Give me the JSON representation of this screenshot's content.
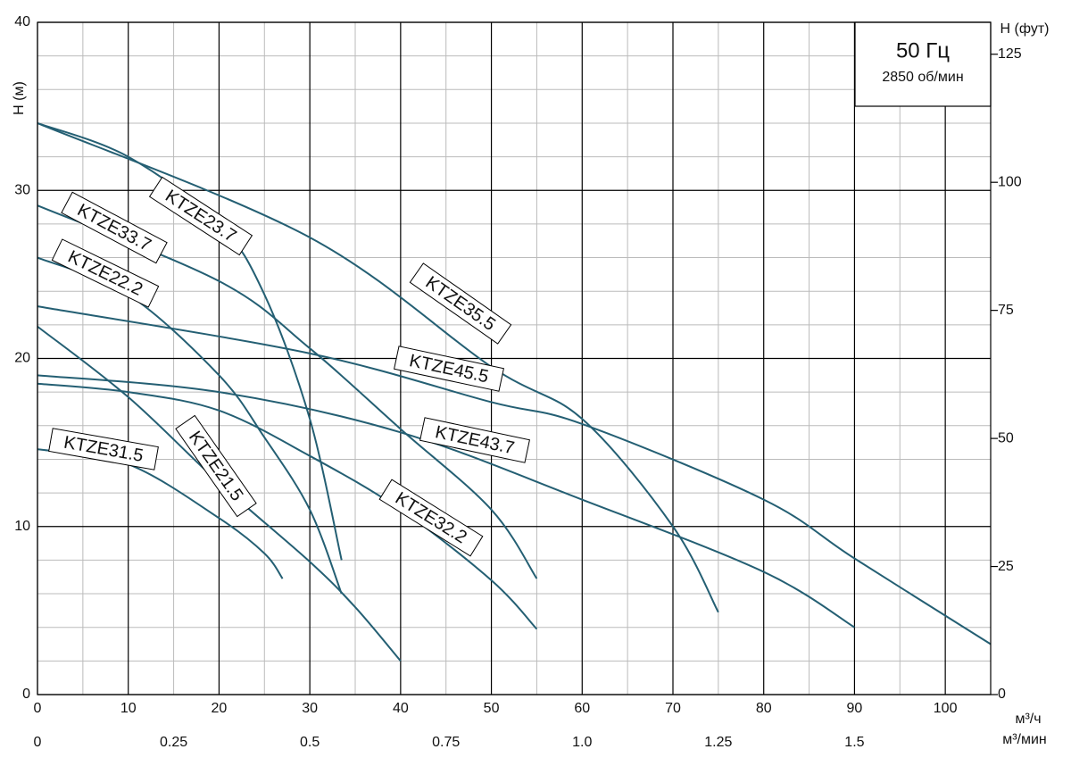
{
  "chart_data": {
    "type": "line",
    "legend_title": "50 Гц",
    "legend_subtitle": "2850 об/мин",
    "ylabel": "H (м)",
    "y2label": "H (фут)",
    "xlabel": "м³/ч",
    "x2label": "м³/мин",
    "xlim": [
      0,
      105
    ],
    "xticks": [
      0,
      10,
      20,
      30,
      40,
      50,
      60,
      70,
      80,
      90,
      100
    ],
    "x2lim": [
      0,
      1.75
    ],
    "x2ticks": [
      0,
      0.25,
      0.5,
      0.75,
      {
        "value": 1,
        "label": "1.0"
      },
      1.25,
      1.5
    ],
    "ylim": [
      0,
      40
    ],
    "yticks": [
      0,
      10,
      20,
      30,
      40
    ],
    "y2lim": [
      0,
      131.23
    ],
    "y2ticks": [
      0,
      25,
      50,
      75,
      100,
      125
    ],
    "grid": true,
    "minor_divisions": {
      "x": 2,
      "y": 5
    },
    "series": [
      {
        "name": "KTZE23.7",
        "color": "#245f73",
        "x": [
          0,
          10,
          20,
          25,
          30,
          33.5
        ],
        "values": [
          34,
          32,
          28,
          23.8,
          16.4,
          8
        ]
      },
      {
        "name": "KTZE33.7",
        "color": "#245f73",
        "x": [
          0,
          20,
          30,
          40,
          50,
          55
        ],
        "values": [
          29.1,
          24.6,
          20.6,
          15.8,
          11,
          6.9
        ]
      },
      {
        "name": "KTZE22.2",
        "color": "#245f73",
        "x": [
          0,
          10,
          20,
          25,
          30,
          33.5
        ],
        "values": [
          26,
          23.8,
          19,
          15.3,
          11,
          6
        ]
      },
      {
        "name": "KTZE35.5",
        "color": "#245f73",
        "x": [
          0,
          30,
          50,
          60,
          70,
          75
        ],
        "values": [
          34,
          27.2,
          19.5,
          16.4,
          10,
          4.9
        ]
      },
      {
        "name": "KTZE45.5",
        "color": "#245f73",
        "x": [
          0,
          30,
          50,
          60,
          80,
          90,
          105
        ],
        "values": [
          23.1,
          20.3,
          17.4,
          16.1,
          11.6,
          8.1,
          3
        ]
      },
      {
        "name": "KTZE43.7",
        "color": "#245f73",
        "x": [
          0,
          20,
          40,
          60,
          80,
          90
        ],
        "values": [
          19,
          18,
          15.6,
          11.6,
          7.3,
          4
        ]
      },
      {
        "name": "KTZE31.5",
        "color": "#245f73",
        "x": [
          0,
          10,
          20,
          25,
          27
        ],
        "values": [
          14.6,
          13.7,
          10.5,
          8.4,
          6.9
        ]
      },
      {
        "name": "KTZE21.5",
        "color": "#245f73",
        "x": [
          0,
          10,
          20,
          30,
          35,
          40
        ],
        "values": [
          21.9,
          17.7,
          12.6,
          7.9,
          5.2,
          2
        ]
      },
      {
        "name": "KTZE32.2",
        "color": "#245f73",
        "x": [
          0,
          10,
          20,
          30,
          40,
          50,
          55
        ],
        "values": [
          18.5,
          18,
          16.9,
          14.2,
          11,
          6.8,
          3.9
        ]
      }
    ]
  }
}
